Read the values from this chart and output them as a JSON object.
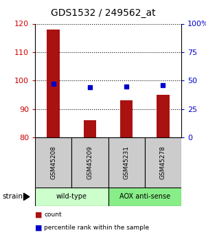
{
  "title": "GDS1532 / 249562_at",
  "samples": [
    "GSM45208",
    "GSM45209",
    "GSM45231",
    "GSM45278"
  ],
  "counts": [
    118,
    86,
    93,
    95
  ],
  "percentiles": [
    47,
    44,
    45,
    46
  ],
  "ylim_left": [
    80,
    120
  ],
  "ylim_right": [
    0,
    100
  ],
  "yticks_left": [
    80,
    90,
    100,
    110,
    120
  ],
  "yticks_right": [
    0,
    25,
    50,
    75,
    100
  ],
  "ytick_labels_right": [
    "0",
    "25",
    "50",
    "75",
    "100%"
  ],
  "bar_color": "#aa1111",
  "dot_color": "#0000cc",
  "bar_width": 0.35,
  "groups": [
    {
      "label": "wild-type",
      "indices": [
        0,
        1
      ],
      "color": "#ccffcc"
    },
    {
      "label": "AOX anti-sense",
      "indices": [
        2,
        3
      ],
      "color": "#88ee88"
    }
  ],
  "strain_label": "strain",
  "background_color": "#ffffff",
  "left_tick_color": "#cc0000",
  "right_tick_color": "#0000cc",
  "sample_box_color": "#cccccc",
  "legend_items": [
    {
      "color": "#aa1111",
      "label": "count"
    },
    {
      "color": "#0000cc",
      "label": "percentile rank within the sample"
    }
  ]
}
